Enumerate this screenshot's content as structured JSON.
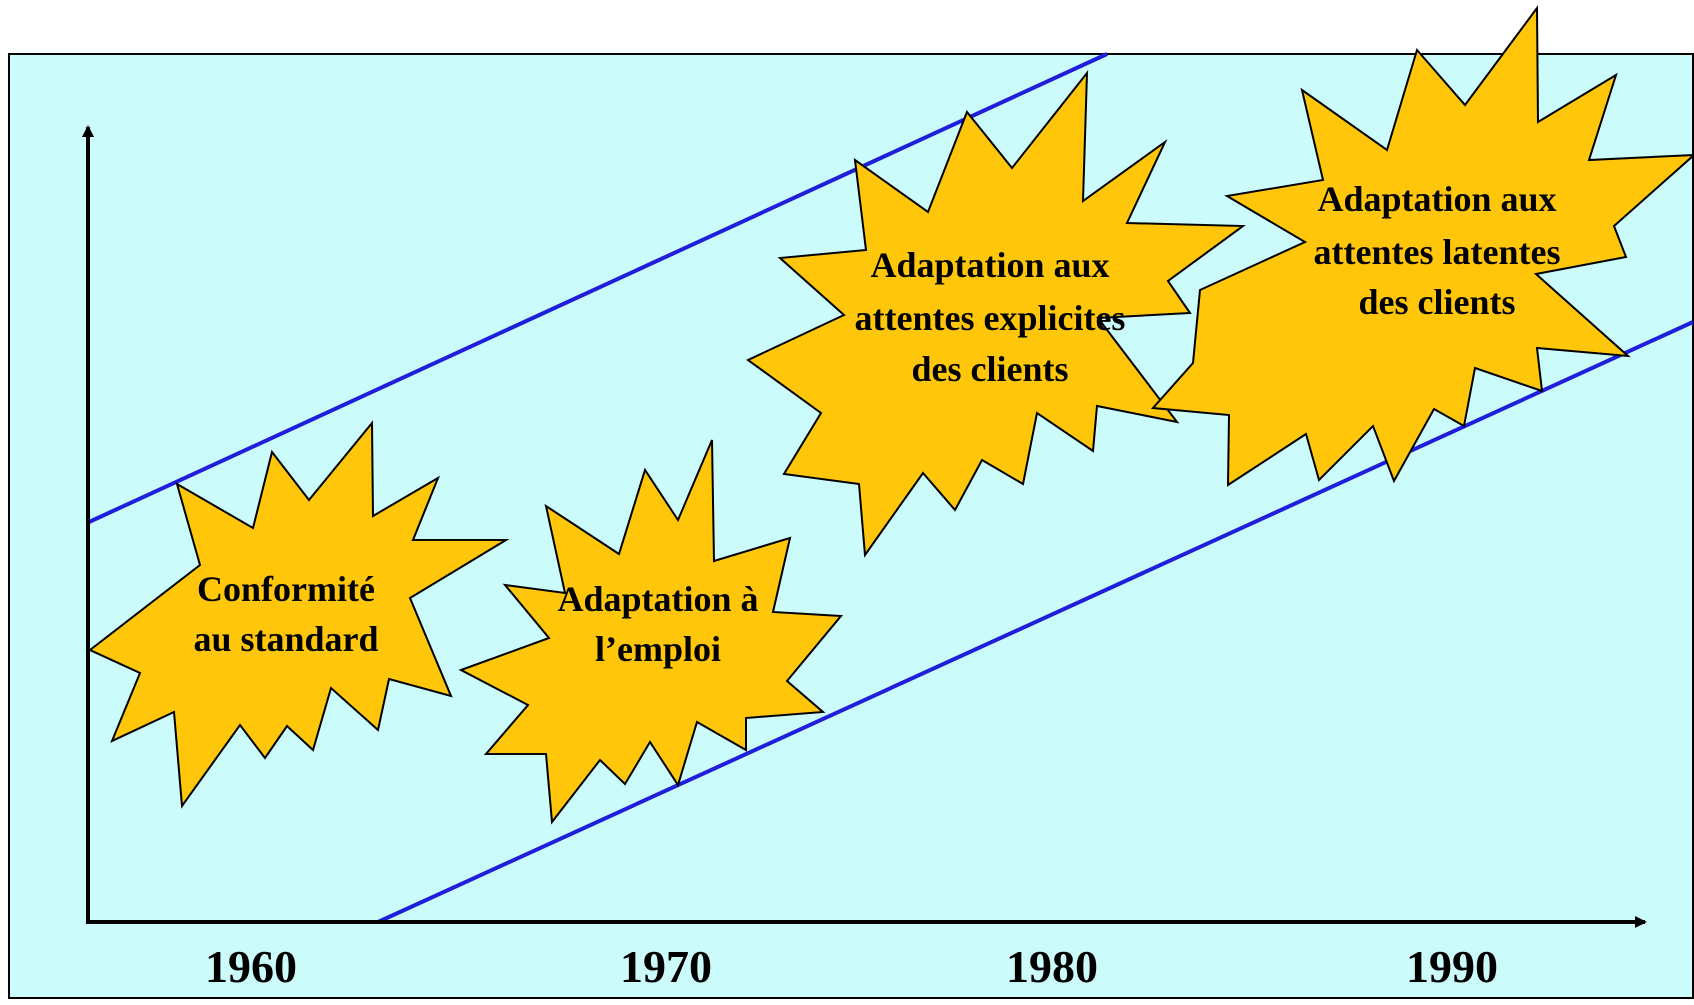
{
  "colors": {
    "panel_bg": "#ccfbfb",
    "panel_border": "#000000",
    "band_line": "#1f1fdb",
    "burst_fill": "#ffc60a",
    "burst_stroke": "#000000",
    "axis": "#000000"
  },
  "axis": {
    "x_labels": [
      "1960",
      "1970",
      "1980",
      "1990"
    ]
  },
  "bursts": [
    {
      "lines": [
        "Conformité",
        "au standard"
      ]
    },
    {
      "lines": [
        "Adaptation à",
        "l’emploi"
      ]
    },
    {
      "lines": [
        "Adaptation aux",
        "attentes explicites",
        "des clients"
      ]
    },
    {
      "lines": [
        "Adaptation aux",
        "attentes latentes",
        "des clients"
      ]
    }
  ]
}
